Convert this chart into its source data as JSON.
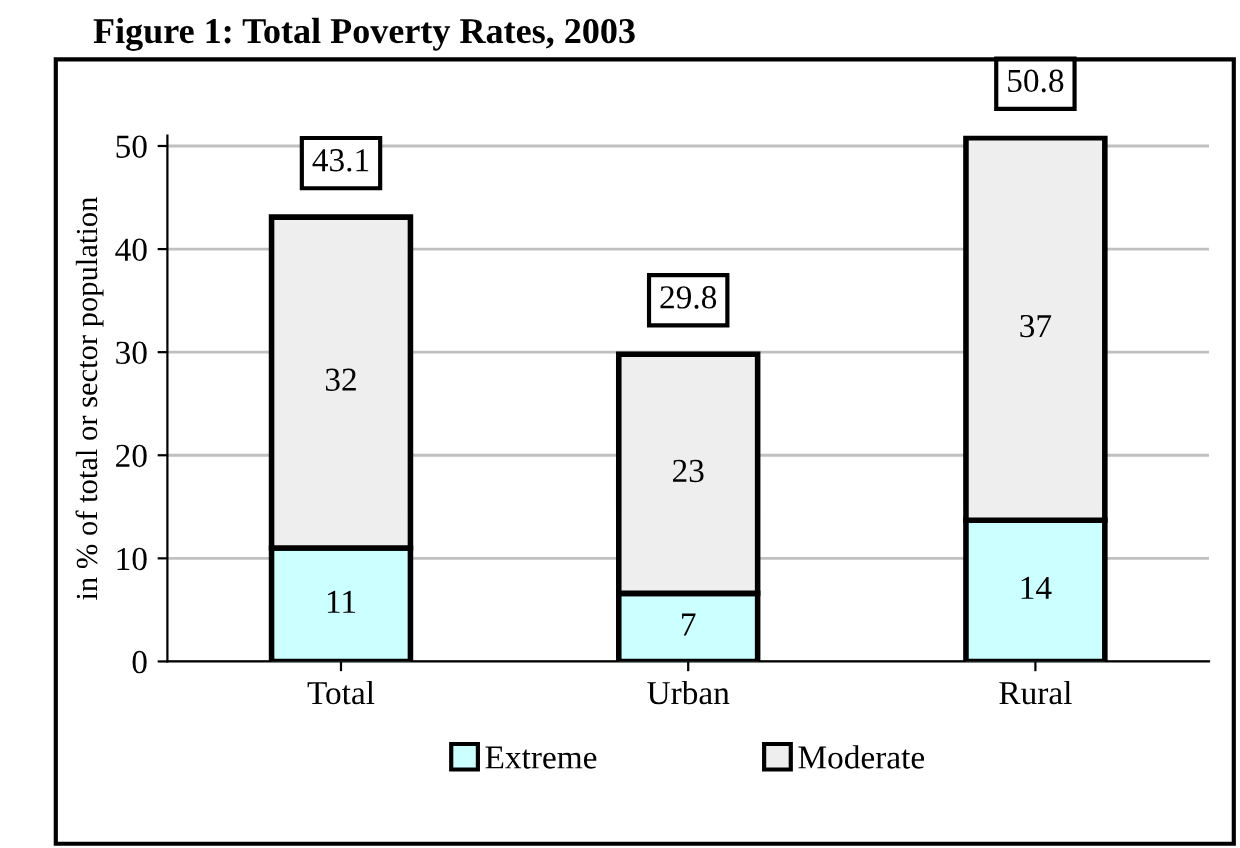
{
  "chart_data": {
    "type": "bar",
    "title": "Figure 1: Total Poverty Rates, 2003",
    "ylabel": "in % of total or sector population",
    "categories": [
      "Total",
      "Urban",
      "Rural"
    ],
    "stacked": true,
    "series": [
      {
        "name": "Extreme",
        "color": "#ccffff",
        "values": [
          11.0,
          6.6,
          13.7
        ],
        "value_labels": [
          "11",
          "7",
          "14"
        ]
      },
      {
        "name": "Moderate",
        "color": "#eeeeee",
        "values": [
          32.1,
          23.2,
          37.1
        ],
        "value_labels": [
          "32",
          "23",
          "37"
        ]
      }
    ],
    "totals": [
      "43.1",
      "29.8",
      "50.8"
    ],
    "ylim": [
      0,
      51
    ],
    "yticks": [
      0,
      10,
      20,
      30,
      40,
      50
    ],
    "grid": "y",
    "legend": "bottom"
  }
}
